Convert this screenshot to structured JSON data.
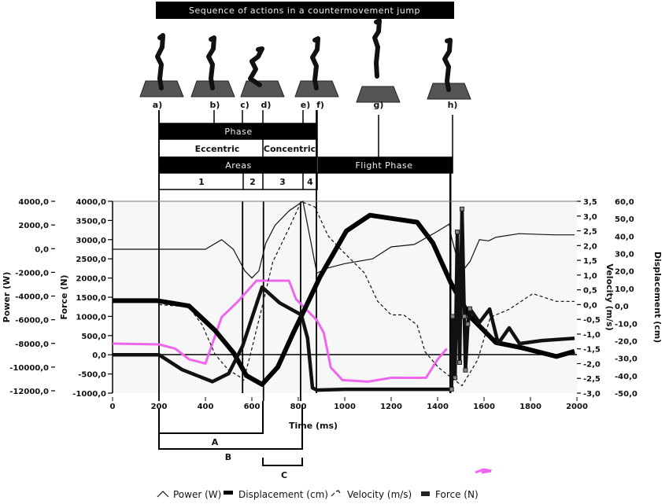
{
  "diagram": {
    "title": "Sequence of actions in a countermovement jump",
    "poses": [
      "a)",
      "b)",
      "c)",
      "d)",
      "e)",
      "f)",
      "g)",
      "h)"
    ],
    "phase_label": "Phase",
    "eccentric_label": "Eccentric",
    "concentric_label": "Concentric",
    "areas_label": "Areas",
    "flight_label": "Flight Phase",
    "areas": [
      "1",
      "2",
      "3",
      "4"
    ],
    "brackets": [
      "A",
      "B",
      "C"
    ]
  },
  "chart_data": {
    "type": "line",
    "xlabel": "Time (ms)",
    "xlim": [
      0,
      2000
    ],
    "xticks": [
      "0",
      "200",
      "400",
      "600",
      "800",
      "1000",
      "1200",
      "1400",
      "1600",
      "1800",
      "2000"
    ],
    "axes": {
      "power": {
        "label": "Power (W)",
        "lim": [
          -12000,
          4000
        ],
        "ticks": [
          "4000,0",
          "2000,0",
          "0,0",
          "-2000,0",
          "-4000,0",
          "-6000,0",
          "-8000,0",
          "-10000,0",
          "-12000,0"
        ]
      },
      "force": {
        "label": "Force (N)",
        "lim": [
          -1000,
          4000
        ],
        "ticks": [
          "4000,0",
          "3500,0",
          "3000,0",
          "2500,0",
          "2000,0",
          "1500,0",
          "1000,0",
          "500,0",
          "0,0",
          "-500,0",
          "-1000,0"
        ]
      },
      "velocity": {
        "label": "Velocity (m/s)",
        "lim": [
          -3.0,
          3.5
        ],
        "ticks": [
          "3,5",
          "3,0",
          "2,5",
          "2,0",
          "1,5",
          "1,0",
          "0,5",
          "0,0",
          "-0,5",
          "-1,0",
          "-1,5",
          "-2,0",
          "-2,5",
          "-3,0"
        ]
      },
      "displacement": {
        "label": "Displacement (cm)",
        "lim": [
          -50,
          60
        ],
        "ticks": [
          "60,0",
          "50,0",
          "40,0",
          "30,0",
          "20,0",
          "10,0",
          "0,0",
          "-10,0",
          "-20,0",
          "-30,0",
          "-40,0",
          "-50,0"
        ]
      }
    },
    "event_lines_ms": [
      200,
      560,
      650,
      810,
      878,
      1455
    ],
    "series": [
      {
        "name": "Power (W)",
        "axis": "power",
        "style": "thin",
        "color": "#111111",
        "points": [
          [
            0,
            0
          ],
          [
            400,
            0
          ],
          [
            470,
            800
          ],
          [
            520,
            0
          ],
          [
            570,
            -1800
          ],
          [
            600,
            -2400
          ],
          [
            630,
            -1800
          ],
          [
            660,
            500
          ],
          [
            700,
            2000
          ],
          [
            760,
            3200
          ],
          [
            820,
            4000
          ],
          [
            850,
            1000
          ],
          [
            880,
            -2000
          ],
          [
            920,
            -1600
          ],
          [
            1000,
            -1200
          ],
          [
            1120,
            -800
          ],
          [
            1200,
            200
          ],
          [
            1300,
            400
          ],
          [
            1400,
            1500
          ],
          [
            1450,
            2100
          ],
          [
            1460,
            1000
          ],
          [
            1500,
            -2000
          ],
          [
            1540,
            -1000
          ],
          [
            1580,
            800
          ],
          [
            1620,
            700
          ],
          [
            1650,
            1000
          ],
          [
            1750,
            1300
          ],
          [
            1900,
            1200
          ],
          [
            1990,
            1200
          ]
        ]
      },
      {
        "name": "Displacement (cm)",
        "axis": "displacement",
        "style": "thick",
        "color": "#000000",
        "points": [
          [
            0,
            3
          ],
          [
            193,
            3
          ],
          [
            329,
            0
          ],
          [
            441,
            -14
          ],
          [
            522,
            -27
          ],
          [
            577,
            -40
          ],
          [
            644,
            -45
          ],
          [
            712,
            -35
          ],
          [
            780,
            -15
          ],
          [
            827,
            -2
          ],
          [
            895,
            17
          ],
          [
            1007,
            43
          ],
          [
            1108,
            52
          ],
          [
            1312,
            48
          ],
          [
            1380,
            36
          ],
          [
            1458,
            13
          ],
          [
            1539,
            -6
          ],
          [
            1651,
            -21
          ],
          [
            1763,
            -24
          ],
          [
            1912,
            -29
          ],
          [
            1990,
            -26
          ]
        ]
      },
      {
        "name": "Velocity (m/s)",
        "axis": "velocity",
        "style": "dashed",
        "color": "#111111",
        "points": [
          [
            200,
            0
          ],
          [
            329,
            -0.08
          ],
          [
            386,
            -0.69
          ],
          [
            441,
            -1.68
          ],
          [
            498,
            -2.21
          ],
          [
            555,
            -2.48
          ],
          [
            565,
            -2.56
          ],
          [
            600,
            -1.49
          ],
          [
            644,
            -0.08
          ],
          [
            690,
            1.44
          ],
          [
            760,
            2.59
          ],
          [
            813,
            3.49
          ],
          [
            871,
            3.31
          ],
          [
            929,
            2.32
          ],
          [
            983,
            1.87
          ],
          [
            1085,
            1.07
          ],
          [
            1142,
            0.11
          ],
          [
            1200,
            -0.35
          ],
          [
            1254,
            -0.35
          ],
          [
            1312,
            -0.69
          ],
          [
            1346,
            -1.6
          ],
          [
            1403,
            -2.13
          ],
          [
            1447,
            -2.4
          ],
          [
            1505,
            -2.75
          ],
          [
            1573,
            -1.87
          ],
          [
            1627,
            -0.43
          ],
          [
            1708,
            -0.16
          ],
          [
            1810,
            0.37
          ],
          [
            1912,
            0.11
          ],
          [
            1990,
            0.11
          ]
        ]
      },
      {
        "name": "Force (N)",
        "axis": "force",
        "style": "squares",
        "color": "#222222",
        "points": [
          [
            0,
            0
          ],
          [
            200,
            0
          ],
          [
            300,
            -390
          ],
          [
            430,
            -700
          ],
          [
            500,
            -490
          ],
          [
            560,
            225
          ],
          [
            644,
            1760
          ],
          [
            720,
            1350
          ],
          [
            813,
            1040
          ],
          [
            840,
            430
          ],
          [
            861,
            -860
          ],
          [
            880,
            -920
          ],
          [
            1000,
            -900
          ],
          [
            1460,
            -900
          ],
          [
            1465,
            1000
          ],
          [
            1475,
            -600
          ],
          [
            1485,
            3200
          ],
          [
            1495,
            -200
          ],
          [
            1505,
            3800
          ],
          [
            1515,
            1000
          ],
          [
            1520,
            -400
          ],
          [
            1530,
            800
          ],
          [
            1539,
            1200
          ],
          [
            1580,
            840
          ],
          [
            1624,
            1190
          ],
          [
            1661,
            290
          ],
          [
            1708,
            700
          ],
          [
            1753,
            290
          ],
          [
            1850,
            370
          ],
          [
            1990,
            430
          ]
        ]
      },
      {
        "axis": "force",
        "style": "pink",
        "color": "#ee66ee",
        "points": [
          [
            0,
            290
          ],
          [
            200,
            270
          ],
          [
            270,
            160
          ],
          [
            330,
            -120
          ],
          [
            400,
            -230
          ],
          [
            470,
            980
          ],
          [
            540,
            1390
          ],
          [
            620,
            1930
          ],
          [
            760,
            1930
          ],
          [
            790,
            1450
          ],
          [
            880,
            900
          ],
          [
            910,
            570
          ],
          [
            940,
            -330
          ],
          [
            990,
            -660
          ],
          [
            1100,
            -700
          ],
          [
            1200,
            -600
          ],
          [
            1350,
            -600
          ],
          [
            1400,
            -120
          ],
          [
            1440,
            160
          ]
        ]
      }
    ],
    "legend": {
      "placement": "bottom",
      "items": [
        "Power (W)",
        "Displacement (cm)",
        "Velocity (m/s)",
        "Force (N)"
      ]
    },
    "grid": false
  }
}
